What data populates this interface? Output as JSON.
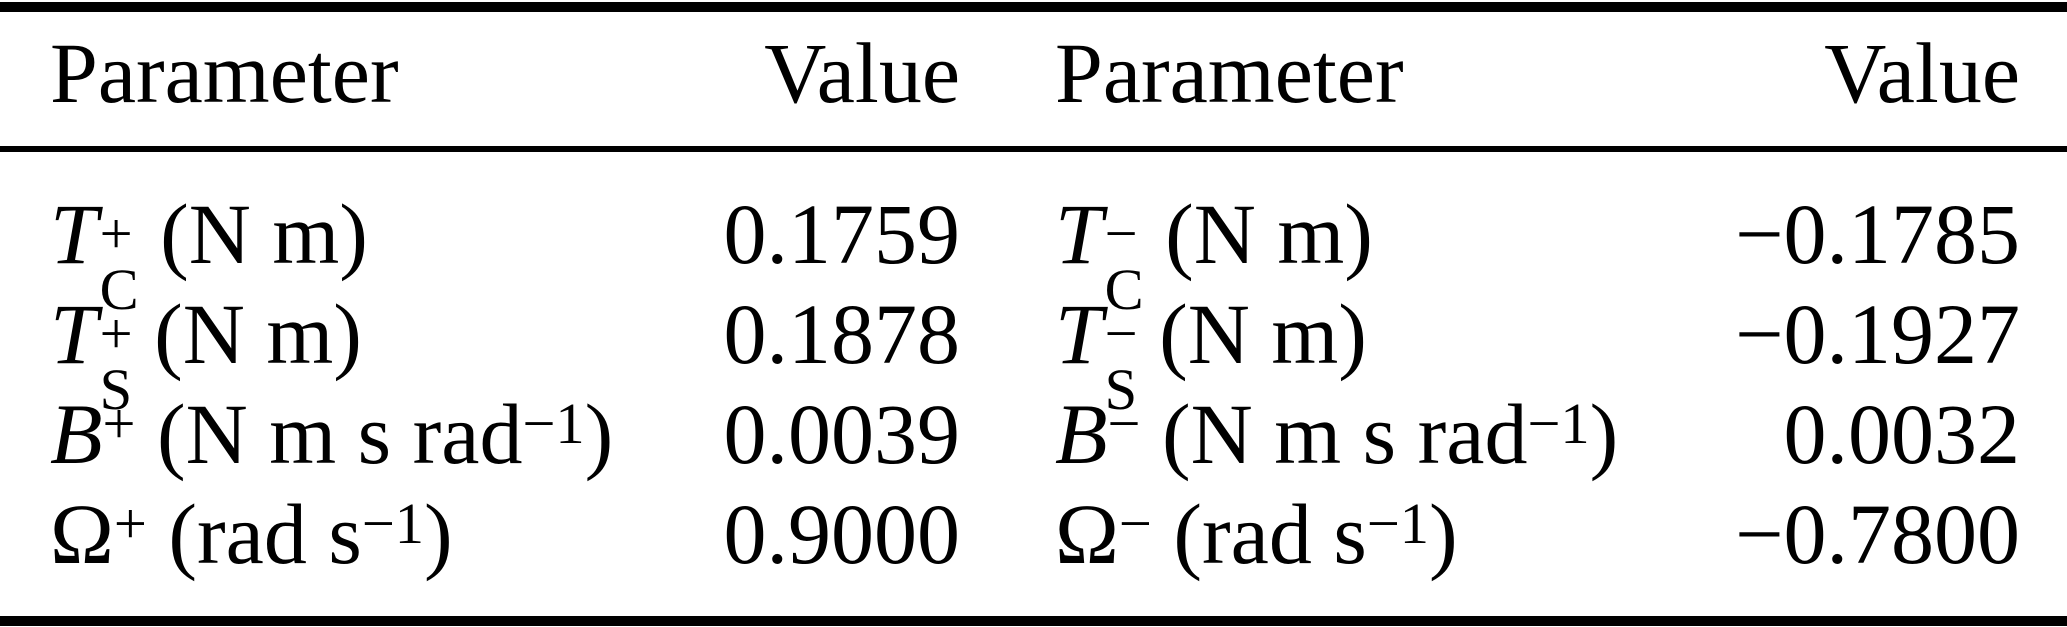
{
  "table": {
    "columns": [
      "Parameter",
      "Value",
      "Parameter",
      "Value"
    ],
    "rows": [
      {
        "left": {
          "sym": "T",
          "sub": "C",
          "sup": "+",
          "units": "(N m)"
        },
        "left_value": "0.1759",
        "right": {
          "sym": "T",
          "sub": "C",
          "sup": "−",
          "units": "(N m)"
        },
        "right_value": "−0.1785"
      },
      {
        "left": {
          "sym": "T",
          "sub": "S",
          "sup": "+",
          "units": "(N m)"
        },
        "left_value": "0.1878",
        "right": {
          "sym": "T",
          "sub": "S",
          "sup": "−",
          "units": "(N m)"
        },
        "right_value": "−0.1927"
      },
      {
        "left": {
          "sym": "B",
          "sub": "",
          "sup": "+",
          "units": "(N m s rad^{−1})"
        },
        "left_value": "0.0039",
        "right": {
          "sym": "B",
          "sub": "",
          "sup": "−",
          "units": "(N m s rad^{−1})"
        },
        "right_value": "0.0032"
      },
      {
        "left": {
          "sym": "Ω",
          "sub": "",
          "sup": "+",
          "units": "(rad s^{−1})"
        },
        "left_value": "0.9000",
        "right": {
          "sym": "Ω",
          "sub": "",
          "sup": "−",
          "units": "(rad s^{−1})"
        },
        "right_value": "−0.7800"
      }
    ],
    "text_color": "#000000",
    "background_color": "#ffffff"
  }
}
